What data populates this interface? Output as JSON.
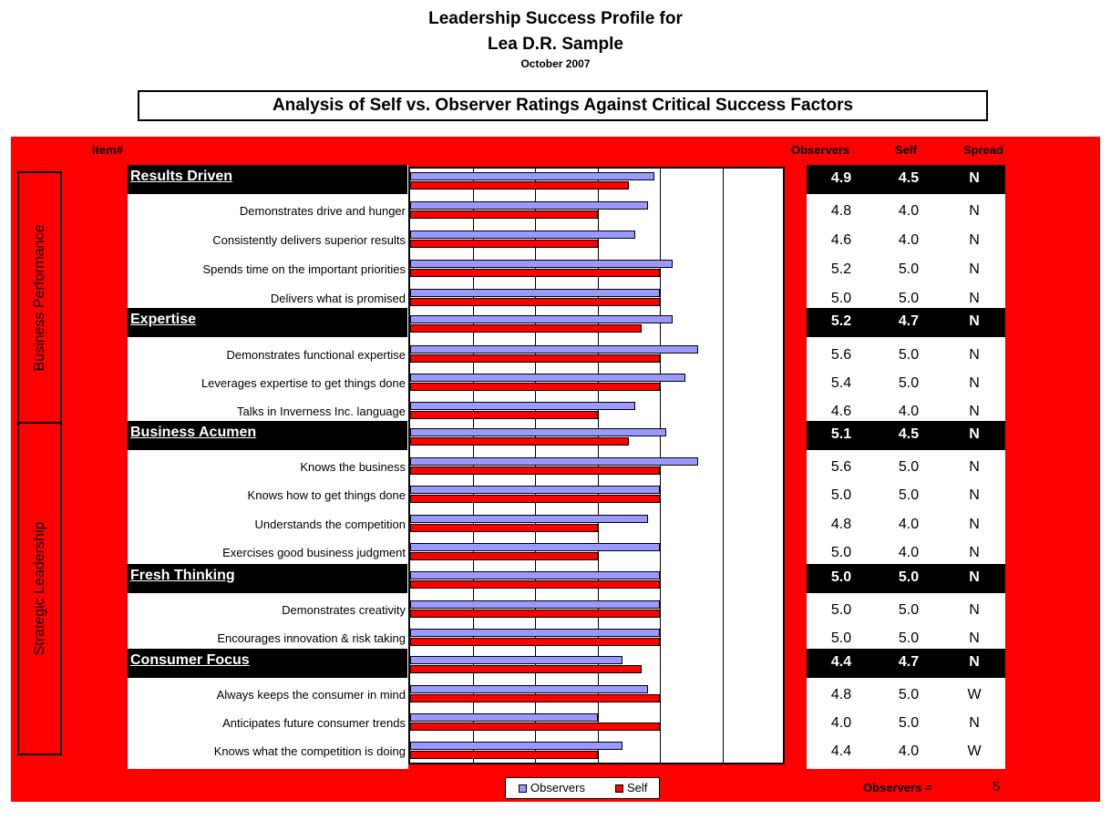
{
  "header": {
    "title_line1": "Leadership Success Profile for",
    "title_line2": "Lea D.R. Sample",
    "date": "October 2007",
    "subtitle": "Analysis of Self vs. Observer Ratings Against Critical Success Factors"
  },
  "columns": {
    "item": "Item#",
    "observers": "Observers",
    "self": "Self",
    "spread": "Spread"
  },
  "side_labels": [
    "Business Performance",
    "Strategic Leadership"
  ],
  "legend": {
    "observers": "Observers",
    "self": "Self"
  },
  "footer": {
    "observers_label": "Observers =",
    "observers_count": "5"
  },
  "colors": {
    "observers": "#9999ff",
    "self": "#ff0000",
    "panel": "#ff0000"
  },
  "chart_data": {
    "type": "bar",
    "orientation": "horizontal",
    "xlim": [
      1,
      7
    ],
    "series": [
      {
        "name": "Observers",
        "key": "obs"
      },
      {
        "name": "Self",
        "key": "self"
      }
    ],
    "rows": [
      {
        "kind": "category",
        "label": "Results Driven",
        "obs": 4.9,
        "self": 4.5,
        "obs_text": "4.9",
        "self_text": "4.5",
        "spread": "N"
      },
      {
        "kind": "item",
        "label": "Demonstrates drive and hunger",
        "obs": 4.8,
        "self": 4.0,
        "obs_text": "4.8",
        "self_text": "4.0",
        "spread": "N"
      },
      {
        "kind": "item",
        "label": "Consistently delivers superior results",
        "obs": 4.6,
        "self": 4.0,
        "obs_text": "4.6",
        "self_text": "4.0",
        "spread": "N"
      },
      {
        "kind": "item",
        "label": "Spends time on the important priorities",
        "obs": 5.2,
        "self": 5.0,
        "obs_text": "5.2",
        "self_text": "5.0",
        "spread": "N"
      },
      {
        "kind": "item",
        "label": "Delivers what is promised",
        "obs": 5.0,
        "self": 5.0,
        "obs_text": "5.0",
        "self_text": "5.0",
        "spread": "N"
      },
      {
        "kind": "category",
        "label": "Expertise",
        "obs": 5.2,
        "self": 4.7,
        "obs_text": "5.2",
        "self_text": "4.7",
        "spread": "N"
      },
      {
        "kind": "item",
        "label": "Demonstrates functional expertise",
        "obs": 5.6,
        "self": 5.0,
        "obs_text": "5.6",
        "self_text": "5.0",
        "spread": "N"
      },
      {
        "kind": "item",
        "label": "Leverages expertise to get things done",
        "obs": 5.4,
        "self": 5.0,
        "obs_text": "5.4",
        "self_text": "5.0",
        "spread": "N"
      },
      {
        "kind": "item",
        "label": "Talks in Inverness Inc. language",
        "obs": 4.6,
        "self": 4.0,
        "obs_text": "4.6",
        "self_text": "4.0",
        "spread": "N"
      },
      {
        "kind": "category",
        "label": "Business Acumen",
        "obs": 5.1,
        "self": 4.5,
        "obs_text": "5.1",
        "self_text": "4.5",
        "spread": "N"
      },
      {
        "kind": "item",
        "label": "Knows the  business",
        "obs": 5.6,
        "self": 5.0,
        "obs_text": "5.6",
        "self_text": "5.0",
        "spread": "N"
      },
      {
        "kind": "item",
        "label": "Knows how to get things done",
        "obs": 5.0,
        "self": 5.0,
        "obs_text": "5.0",
        "self_text": "5.0",
        "spread": "N"
      },
      {
        "kind": "item",
        "label": "Understands the competition",
        "obs": 4.8,
        "self": 4.0,
        "obs_text": "4.8",
        "self_text": "4.0",
        "spread": "N"
      },
      {
        "kind": "item",
        "label": "Exercises good business judgment",
        "obs": 5.0,
        "self": 4.0,
        "obs_text": "5.0",
        "self_text": "4.0",
        "spread": "N"
      },
      {
        "kind": "category",
        "label": "Fresh Thinking",
        "obs": 5.0,
        "self": 5.0,
        "obs_text": "5.0",
        "self_text": "5.0",
        "spread": "N"
      },
      {
        "kind": "item",
        "label": "Demonstrates creativity",
        "obs": 5.0,
        "self": 5.0,
        "obs_text": "5.0",
        "self_text": "5.0",
        "spread": "N"
      },
      {
        "kind": "item",
        "label": "Encourages innovation & risk taking",
        "obs": 5.0,
        "self": 5.0,
        "obs_text": "5.0",
        "self_text": "5.0",
        "spread": "N"
      },
      {
        "kind": "category",
        "label": "Consumer Focus",
        "obs": 4.4,
        "self": 4.7,
        "obs_text": "4.4",
        "self_text": "4.7",
        "spread": "N"
      },
      {
        "kind": "item",
        "label": "Always keeps the consumer in mind",
        "obs": 4.8,
        "self": 5.0,
        "obs_text": "4.8",
        "self_text": "5.0",
        "spread": "W"
      },
      {
        "kind": "item",
        "label": "Anticipates future consumer trends",
        "obs": 4.0,
        "self": 5.0,
        "obs_text": "4.0",
        "self_text": "5.0",
        "spread": "N"
      },
      {
        "kind": "item",
        "label": "Knows what the competition is doing",
        "obs": 4.4,
        "self": 4.0,
        "obs_text": "4.4",
        "self_text": "4.0",
        "spread": "W"
      }
    ]
  }
}
